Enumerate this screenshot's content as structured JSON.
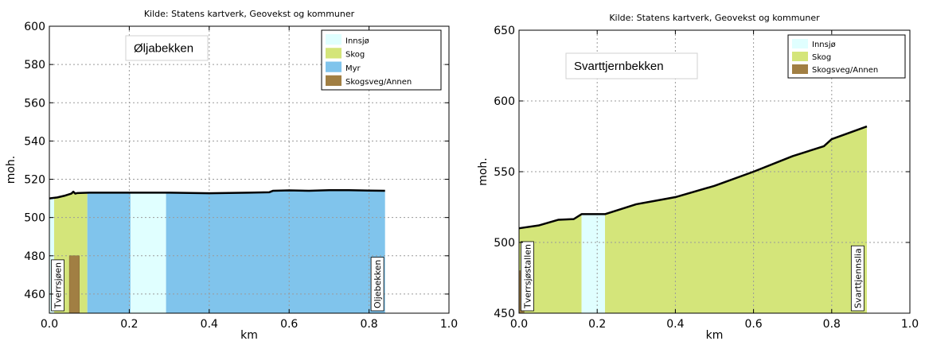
{
  "chart_data": [
    {
      "type": "area",
      "title": "Kilde: Statens kartverk, Geovekst og kommuner",
      "name_box": "Øljabekken",
      "xlabel": "km",
      "ylabel": "moh.",
      "xlim": [
        0.0,
        1.0
      ],
      "ylim": [
        450,
        600
      ],
      "xticks": [
        "0.0",
        "0.2",
        "0.4",
        "0.6",
        "0.8",
        "1.0"
      ],
      "yticks": [
        "460",
        "480",
        "500",
        "520",
        "540",
        "560",
        "580",
        "600"
      ],
      "grid": true,
      "legend_position": "top-right",
      "legend": [
        {
          "label": "Innsjø",
          "color": "#e0ffff"
        },
        {
          "label": "Skog",
          "color": "#d4e57a"
        },
        {
          "label": "Myr",
          "color": "#80c4ec"
        },
        {
          "label": "Skogsveg/Annen",
          "color": "#a17f43"
        }
      ],
      "segments": [
        {
          "type": "Innsjø",
          "from": 0.0,
          "to": 0.012
        },
        {
          "type": "Skog",
          "from": 0.012,
          "to": 0.095
        },
        {
          "type": "Myr",
          "from": 0.095,
          "to": 0.203
        },
        {
          "type": "Innsjø",
          "from": 0.203,
          "to": 0.292
        },
        {
          "type": "Myr",
          "from": 0.292,
          "to": 0.84
        }
      ],
      "extra_bars": [
        {
          "type": "Skogsveg/Annen",
          "from": 0.05,
          "to": 0.075,
          "top": 480
        }
      ],
      "profile": {
        "x": [
          0.0,
          0.02,
          0.04,
          0.055,
          0.06,
          0.065,
          0.07,
          0.1,
          0.2,
          0.3,
          0.4,
          0.5,
          0.55,
          0.56,
          0.6,
          0.65,
          0.7,
          0.75,
          0.8,
          0.84
        ],
        "y": [
          510,
          510.5,
          511.5,
          512.5,
          513.5,
          512.5,
          512.8,
          513,
          513,
          513,
          512.7,
          513,
          513.2,
          514,
          514.2,
          514,
          514.3,
          514.3,
          514.1,
          514
        ]
      },
      "places": [
        {
          "label": "Tverrsjøen",
          "x": 0.005
        },
        {
          "label": "Oljebekken",
          "x": 0.805
        }
      ]
    },
    {
      "type": "area",
      "title": "Kilde: Statens kartverk, Geovekst og kommuner",
      "name_box": "Svarttjernbekken",
      "xlabel": "km",
      "ylabel": "moh.",
      "xlim": [
        0.0,
        1.0
      ],
      "ylim": [
        450,
        650
      ],
      "xticks": [
        "0.0",
        "0.2",
        "0.4",
        "0.6",
        "0.8",
        "1.0"
      ],
      "yticks": [
        "450",
        "500",
        "550",
        "600",
        "650"
      ],
      "grid": true,
      "legend_position": "top-right",
      "legend": [
        {
          "label": "Innsjø",
          "color": "#e0ffff"
        },
        {
          "label": "Skog",
          "color": "#d4e57a"
        },
        {
          "label": "Skogsveg/Annen",
          "color": "#a17f43"
        }
      ],
      "segments": [
        {
          "type": "Skog",
          "from": 0.0,
          "to": 0.16
        },
        {
          "type": "Innsjø",
          "from": 0.16,
          "to": 0.22
        },
        {
          "type": "Skog",
          "from": 0.22,
          "to": 0.89
        }
      ],
      "extra_bars": [
        {
          "type": "Skogsveg/Annen",
          "from": 0.0,
          "to": 0.013,
          "top": 480
        }
      ],
      "profile": {
        "x": [
          0.0,
          0.05,
          0.1,
          0.14,
          0.16,
          0.22,
          0.3,
          0.4,
          0.5,
          0.6,
          0.7,
          0.78,
          0.8,
          0.85,
          0.89
        ],
        "y": [
          510,
          512,
          516,
          516.5,
          520,
          520,
          527,
          532,
          540,
          550,
          561,
          568,
          573,
          578,
          582
        ]
      },
      "places": [
        {
          "label": "Tverrsjøstallen",
          "x": 0.005
        },
        {
          "label": "Svarttjennslia",
          "x": 0.85
        }
      ]
    }
  ]
}
